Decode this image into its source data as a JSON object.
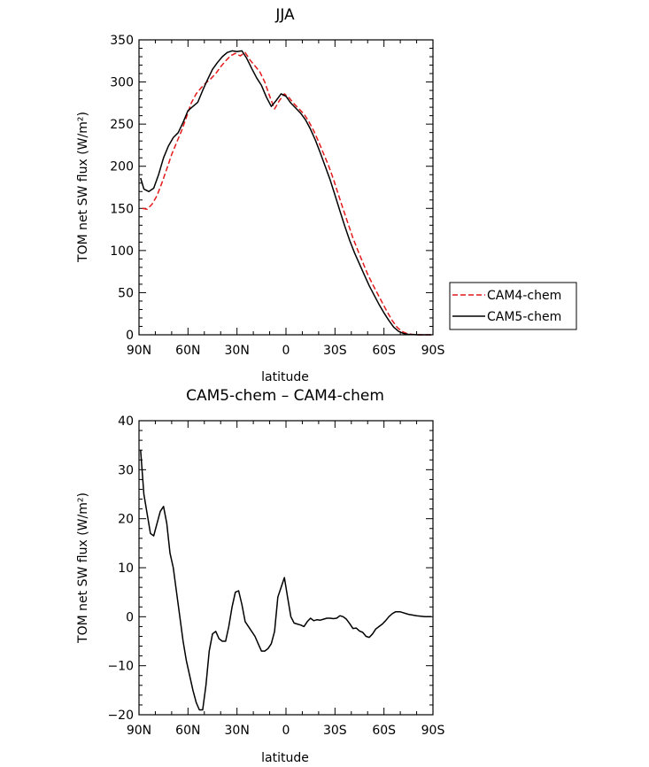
{
  "chart_data": [
    {
      "type": "line",
      "title": "JJA",
      "xlabel": "latitude",
      "ylabel": "TOM net SW flux (W/m²)",
      "ylim": [
        0,
        350
      ],
      "xlim": [
        90,
        -90
      ],
      "x_tick_values": [
        90,
        60,
        30,
        0,
        -30,
        -60,
        -90
      ],
      "x_tick_labels": [
        "90N",
        "60N",
        "30N",
        "0",
        "30S",
        "60S",
        "90S"
      ],
      "y_tick_values": [
        0,
        50,
        100,
        150,
        200,
        250,
        300,
        350
      ],
      "legend": {
        "placement": "right",
        "entries": [
          "CAM4-chem",
          "CAM5-chem"
        ]
      },
      "series": [
        {
          "name": "CAM4-chem",
          "color": "#e41a1c",
          "dash": "dashed",
          "x": [
            88,
            85,
            82,
            79,
            76,
            73,
            70,
            67,
            64,
            61,
            58,
            55,
            52,
            49,
            46,
            43,
            40,
            37,
            34,
            31,
            28,
            25,
            22,
            19,
            16,
            13,
            10,
            7,
            4,
            1,
            -2,
            -5,
            -8,
            -11,
            -14,
            -17,
            -20,
            -23,
            -26,
            -29,
            -32,
            -35,
            -38,
            -41,
            -44,
            -47,
            -50,
            -53,
            -56,
            -59,
            -62,
            -65,
            -68,
            -71,
            -74,
            -77,
            -80,
            -83,
            -86,
            -89
          ],
          "y": [
            150,
            149,
            155,
            165,
            180,
            197,
            214,
            228,
            242,
            258,
            275,
            286,
            293,
            299,
            304,
            310,
            318,
            325,
            331,
            334,
            331,
            335,
            326,
            319,
            312,
            300,
            283,
            268,
            278,
            286,
            281,
            274,
            268,
            262,
            253,
            242,
            229,
            215,
            201,
            185,
            167,
            149,
            132,
            115,
            100,
            86,
            72,
            60,
            49,
            38,
            27,
            17,
            9,
            4,
            1.5,
            0.5,
            0.2,
            0,
            0,
            0
          ]
        },
        {
          "name": "CAM5-chem",
          "color": "#000000",
          "dash": "solid",
          "x": [
            89,
            87,
            84,
            81,
            78,
            75,
            72,
            69,
            66,
            63,
            60,
            57,
            54,
            51,
            48,
            45,
            42,
            39,
            36,
            33,
            30,
            27,
            24,
            21,
            18,
            15,
            12,
            9,
            6,
            3,
            0,
            -3,
            -6,
            -9,
            -12,
            -15,
            -18,
            -21,
            -24,
            -27,
            -30,
            -33,
            -36,
            -39,
            -42,
            -45,
            -48,
            -51,
            -54,
            -57,
            -60,
            -63,
            -66,
            -69,
            -72,
            -75,
            -78,
            -81,
            -84,
            -89
          ],
          "y": [
            186,
            173,
            170,
            174,
            190,
            210,
            224,
            234,
            240,
            252,
            266,
            271,
            276,
            290,
            303,
            315,
            323,
            330,
            335,
            337,
            336,
            337,
            328,
            316,
            305,
            296,
            282,
            271,
            278,
            286,
            283,
            275,
            269,
            263,
            255,
            244,
            231,
            216,
            200,
            184,
            166,
            147,
            129,
            112,
            97,
            84,
            71,
            58,
            47,
            36,
            26,
            17,
            9,
            4,
            1.5,
            0.5,
            0.2,
            0,
            0,
            0
          ]
        }
      ]
    },
    {
      "type": "line",
      "title": "CAM5-chem – CAM4-chem",
      "xlabel": "latitude",
      "ylabel": "TOM net SW flux (W/m²)",
      "ylim": [
        -20,
        40
      ],
      "xlim": [
        90,
        -90
      ],
      "x_tick_values": [
        90,
        60,
        30,
        0,
        -30,
        -60,
        -90
      ],
      "x_tick_labels": [
        "90N",
        "60N",
        "30N",
        "0",
        "30S",
        "60S",
        "90S"
      ],
      "y_tick_values": [
        -20,
        -10,
        0,
        10,
        20,
        30,
        40
      ],
      "series": [
        {
          "color": "#000000",
          "x": [
            89,
            87,
            85,
            83,
            81,
            79,
            77,
            75,
            73,
            71,
            69,
            67,
            65,
            63,
            61,
            59,
            57,
            55,
            53,
            51,
            49,
            47,
            45,
            43,
            41,
            39,
            37,
            35,
            33,
            31,
            29,
            27,
            25,
            23,
            21,
            19,
            17,
            15,
            13,
            11,
            9,
            7,
            5,
            3,
            1,
            -1,
            -3,
            -5,
            -7,
            -9,
            -11,
            -13,
            -15,
            -17,
            -19,
            -21,
            -23,
            -25,
            -27,
            -29,
            -31,
            -33,
            -35,
            -37,
            -39,
            -41,
            -43,
            -45,
            -47,
            -49,
            -51,
            -53,
            -55,
            -57,
            -59,
            -61,
            -63,
            -65,
            -67,
            -70,
            -75,
            -80,
            -85,
            -89
          ],
          "y": [
            34,
            25,
            21,
            17,
            16.5,
            19,
            21.5,
            22.5,
            19,
            13,
            10,
            5,
            0,
            -5,
            -9,
            -12,
            -15,
            -17.5,
            -19,
            -19,
            -14,
            -7,
            -3.5,
            -3,
            -4.5,
            -5,
            -5,
            -2,
            2,
            5,
            5.3,
            2.5,
            -1,
            -2,
            -3,
            -4,
            -5.5,
            -7,
            -7,
            -6.5,
            -5.5,
            -3,
            4,
            6,
            8,
            4,
            0,
            -1.3,
            -1.5,
            -1.7,
            -2,
            -1,
            -0.3,
            -0.8,
            -0.6,
            -0.7,
            -0.5,
            -0.3,
            -0.3,
            -0.4,
            -0.3,
            0.2,
            0,
            -0.5,
            -1.4,
            -2.4,
            -2.3,
            -2.9,
            -3.2,
            -4,
            -4.2,
            -3.5,
            -2.5,
            -2,
            -1.5,
            -0.8,
            0,
            0.6,
            1,
            1,
            0.5,
            0.2,
            0,
            0
          ]
        }
      ]
    }
  ]
}
